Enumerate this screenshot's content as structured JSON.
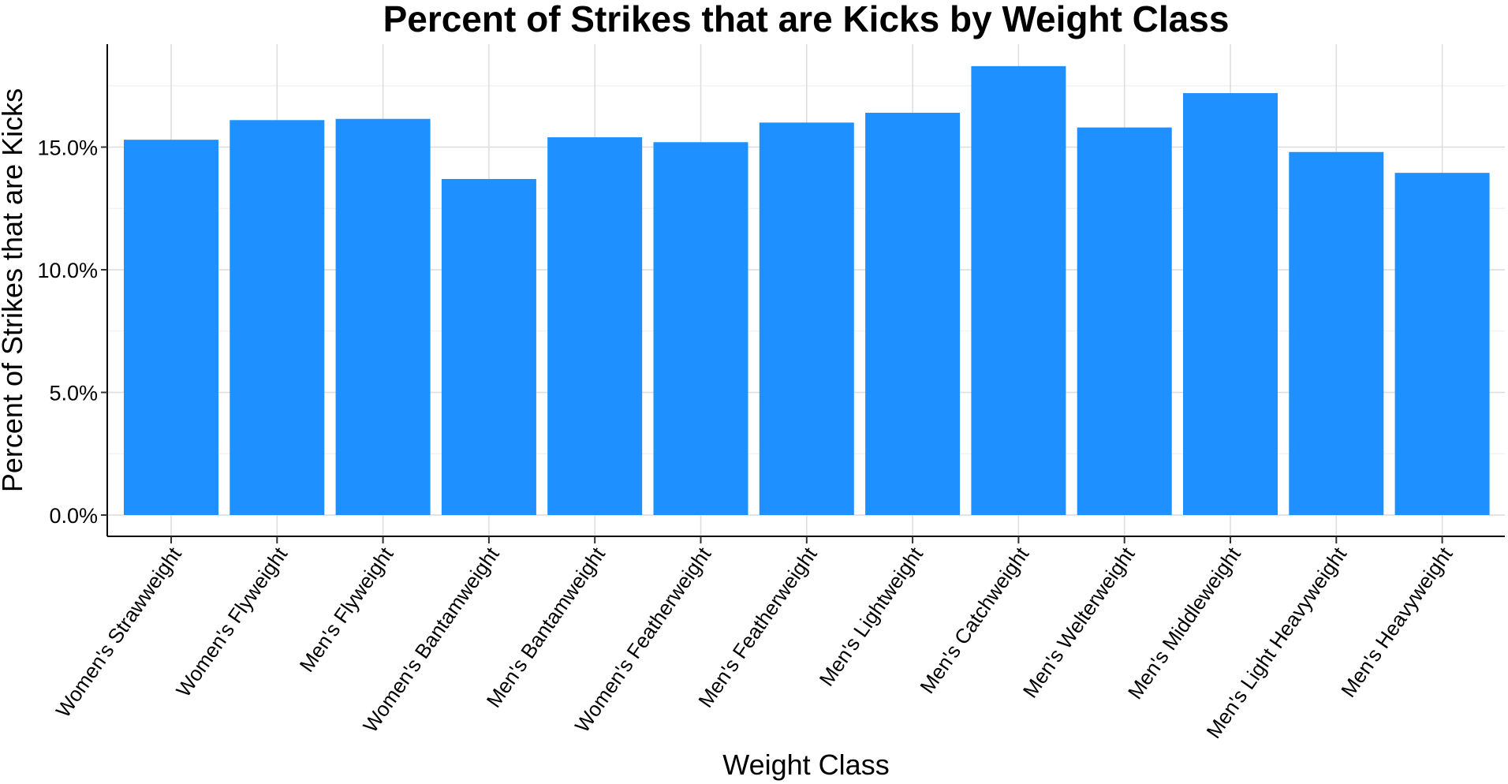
{
  "chart_data": {
    "type": "bar",
    "title": "Percent of Strikes that are Kicks by Weight Class",
    "xlabel": "Weight Class",
    "ylabel": "Percent of Strikes that are Kicks",
    "categories": [
      "Women's Strawweight",
      "Women's Flyweight",
      "Men's Flyweight",
      "Women's Bantamweight",
      "Men's Bantamweight",
      "Women's Featherweight",
      "Men's Featherweight",
      "Men's Lightweight",
      "Men's Catchweight",
      "Men's Welterweight",
      "Men's Middleweight",
      "Men's Light Heavyweight",
      "Men's Heavyweight"
    ],
    "values": [
      15.3,
      16.1,
      16.15,
      13.7,
      15.4,
      15.2,
      16.0,
      16.4,
      18.3,
      15.8,
      17.2,
      14.8,
      13.95
    ],
    "value_format": "percent",
    "ylim": [
      0,
      18.3
    ],
    "yticks": [
      0,
      5,
      10,
      15
    ],
    "ytick_labels": [
      "0.0%",
      "5.0%",
      "10.0%",
      "15.0%"
    ],
    "grid": true,
    "legend": "none",
    "bar_color": "#1E90FF"
  }
}
